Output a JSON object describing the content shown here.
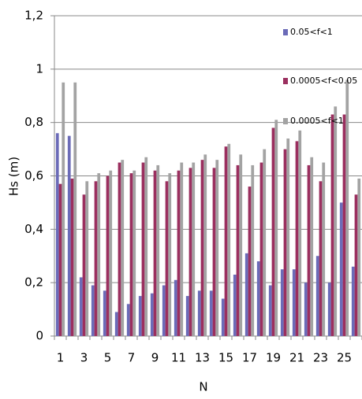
{
  "chart_data": {
    "type": "bar",
    "xlabel": "N",
    "ylabel": "Hs (m)",
    "categories": [
      "1",
      null,
      "3",
      null,
      "5",
      null,
      "7",
      null,
      "9",
      null,
      "11",
      null,
      "13",
      null,
      "15",
      null,
      "17",
      null,
      "19",
      null,
      "21",
      null,
      "23",
      null,
      "25",
      null
    ],
    "series": [
      {
        "name": "0.05<f<1",
        "color": "#6b6bb8",
        "values": [
          0.76,
          0.75,
          0.22,
          0.19,
          0.17,
          0.09,
          0.12,
          0.15,
          0.16,
          0.19,
          0.21,
          0.15,
          0.17,
          0.17,
          0.14,
          0.23,
          0.31,
          0.28,
          0.19,
          0.25,
          0.25,
          0.2,
          0.3,
          0.2,
          0.5,
          0.26
        ]
      },
      {
        "name": "0.0005<f<0.05",
        "color": "#9b2f5f",
        "values": [
          0.57,
          0.59,
          0.53,
          0.58,
          0.6,
          0.65,
          0.61,
          0.65,
          0.62,
          0.58,
          0.62,
          0.63,
          0.66,
          0.63,
          0.71,
          0.64,
          0.56,
          0.65,
          0.78,
          0.7,
          0.73,
          0.64,
          0.58,
          0.83,
          0.83,
          0.53
        ]
      },
      {
        "name": "0.0005<f<1",
        "color": "#a3a3a3",
        "values": [
          0.95,
          0.95,
          0.58,
          0.61,
          0.62,
          0.66,
          0.62,
          0.67,
          0.64,
          0.61,
          0.65,
          0.65,
          0.68,
          0.66,
          0.72,
          0.68,
          0.64,
          0.7,
          0.81,
          0.74,
          0.77,
          0.67,
          0.65,
          0.86,
          0.96,
          0.59
        ]
      }
    ],
    "ylim": [
      0,
      1.2
    ],
    "yticks": [
      0,
      {
        "value": 0.2,
        "label": "0,2"
      },
      {
        "value": 0.4,
        "label": "0,4"
      },
      {
        "value": 0.6,
        "label": "0,6"
      },
      {
        "value": 0.8,
        "label": "0,8"
      },
      1,
      {
        "value": 1.2,
        "label": "1,2"
      }
    ],
    "grid": true,
    "legend": "upper right"
  }
}
